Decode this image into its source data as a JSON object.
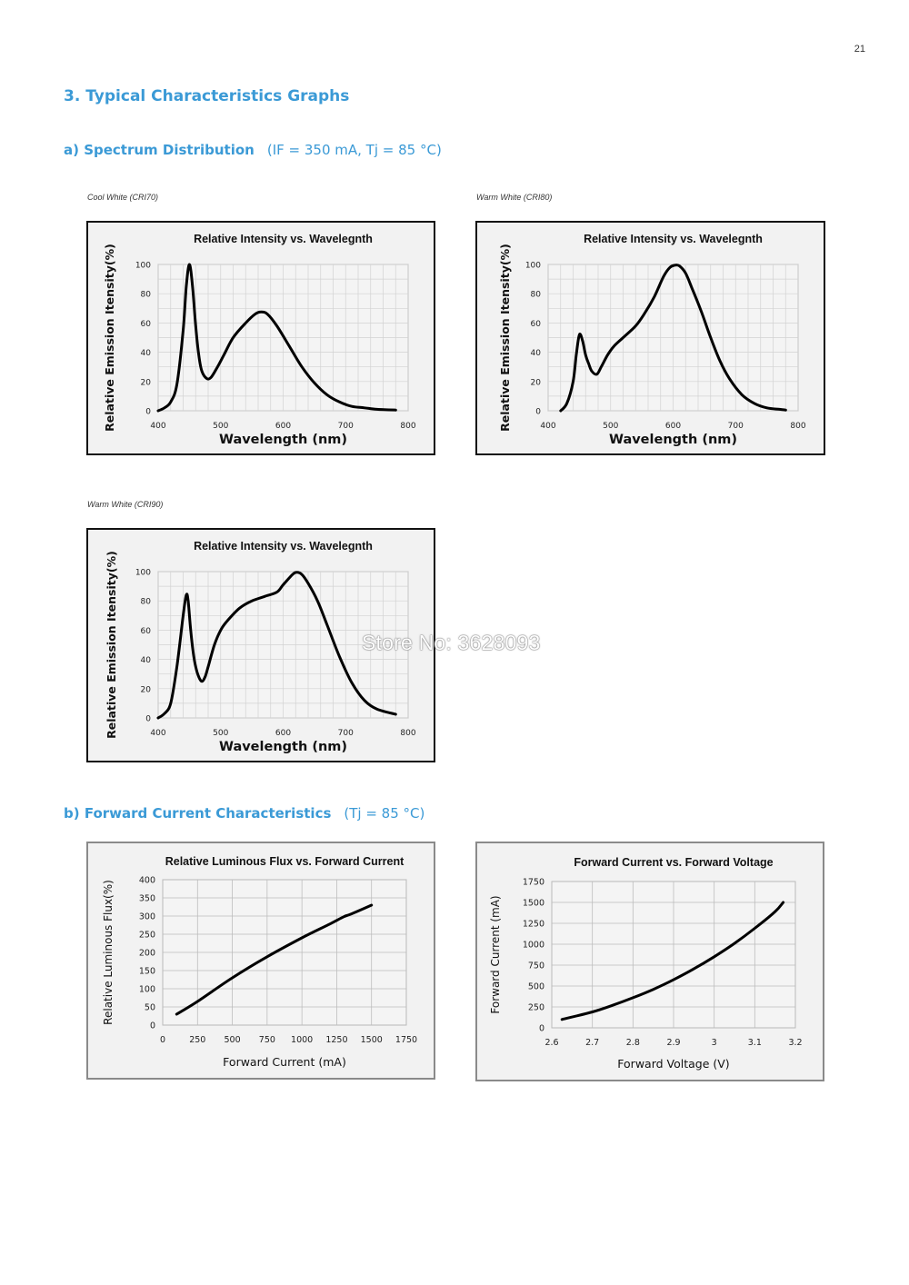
{
  "page_number": "21",
  "section": {
    "title": "3.  Typical Characteristics Graphs",
    "sub_a_title": "a)  Spectrum Distribution",
    "sub_a_conditions": "(IF = 350 mA, Tj = 85 °C)",
    "sub_b_title": "b)  Forward Current Characteristics",
    "sub_b_conditions": "(Tj = 85 °C)"
  },
  "captions": {
    "cool_cri70": "Cool White (CRI70)",
    "warm_cri80": "Warm White (CRI80)",
    "warm_cri90": "Warm White (CRI90)"
  },
  "watermark": "Store No: 3628093",
  "colors": {
    "heading": "#3b9ad6",
    "plot_bg": "#f2f2f2",
    "curve": "#000000",
    "grid": "#c8c8c8"
  },
  "chart_data": [
    {
      "id": "cool70",
      "type": "line",
      "title": "Relative  Intensity  vs.  Wavelegnth",
      "xlabel": "Wavelength (nm)",
      "ylabel": "Relative Emission Itensity(%)",
      "xlim": [
        400,
        800
      ],
      "ylim": [
        0,
        100
      ],
      "xticks": [
        400,
        500,
        600,
        700,
        800
      ],
      "yticks": [
        0,
        20,
        40,
        60,
        80,
        100
      ],
      "grid": true,
      "series": [
        {
          "x": [
            400,
            410,
            420,
            430,
            440,
            445,
            450,
            455,
            460,
            465,
            470,
            478,
            485,
            495,
            505,
            520,
            540,
            555,
            565,
            575,
            590,
            610,
            630,
            650,
            670,
            690,
            710,
            730,
            750,
            780
          ],
          "y": [
            0,
            2,
            6,
            18,
            55,
            85,
            100,
            85,
            58,
            38,
            27,
            22,
            23,
            30,
            38,
            50,
            60,
            66,
            67.5,
            66,
            58,
            44,
            30,
            19,
            11,
            6,
            3,
            2,
            1,
            0.5
          ]
        }
      ]
    },
    {
      "id": "warm80",
      "type": "line",
      "title": "Relative  Intensity  vs.  Wavelegnth",
      "xlabel": "Wavelength (nm)",
      "ylabel": "Relative Emission Itensity(%)",
      "xlim": [
        400,
        800
      ],
      "ylim": [
        0,
        100
      ],
      "xticks": [
        400,
        500,
        600,
        700,
        800
      ],
      "yticks": [
        0,
        20,
        40,
        60,
        80,
        100
      ],
      "grid": true,
      "series": [
        {
          "x": [
            420,
            430,
            440,
            445,
            450,
            455,
            460,
            465,
            470,
            478,
            485,
            495,
            505,
            520,
            540,
            555,
            570,
            585,
            595,
            603,
            610,
            620,
            630,
            645,
            660,
            675,
            690,
            710,
            730,
            750,
            770,
            780
          ],
          "y": [
            0,
            5,
            20,
            38,
            52,
            48,
            38,
            32,
            27,
            25,
            30,
            38,
            44,
            50,
            58,
            67,
            78,
            92,
            98,
            99.5,
            99,
            94,
            84,
            68,
            50,
            34,
            22,
            11,
            5,
            2,
            1,
            0.5
          ]
        }
      ]
    },
    {
      "id": "warm90",
      "type": "line",
      "title": "Relative  Intensity  vs.  Wavelegnth",
      "xlabel": "Wavelength (nm)",
      "ylabel": "Relative Emission Itensity(%)",
      "xlim": [
        400,
        800
      ],
      "ylim": [
        0,
        100
      ],
      "xticks": [
        400,
        500,
        600,
        700,
        800
      ],
      "yticks": [
        0,
        20,
        40,
        60,
        80,
        100
      ],
      "grid": true,
      "series": [
        {
          "x": [
            400,
            410,
            420,
            430,
            440,
            445,
            448,
            452,
            456,
            460,
            465,
            470,
            475,
            480,
            490,
            500,
            510,
            530,
            550,
            570,
            590,
            600,
            615,
            622,
            630,
            640,
            655,
            670,
            690,
            710,
            730,
            750,
            780
          ],
          "y": [
            0,
            3,
            10,
            35,
            70,
            84,
            80,
            60,
            45,
            35,
            28,
            25,
            28,
            35,
            50,
            60,
            66,
            75,
            80,
            83,
            86,
            91,
            98,
            99.5,
            98,
            92,
            80,
            64,
            42,
            24,
            12,
            6,
            2.5
          ]
        }
      ]
    },
    {
      "id": "flux",
      "type": "line",
      "title": "Relative Luminous Flux vs. Forward Current",
      "xlabel": "Forward Current (mA)",
      "ylabel": "Relative Luminous Flux(%)",
      "xlim": [
        0,
        1750
      ],
      "ylim": [
        0,
        400
      ],
      "xticks": [
        0,
        250,
        500,
        750,
        1000,
        1250,
        1500,
        1750
      ],
      "yticks": [
        0,
        50,
        100,
        150,
        200,
        250,
        300,
        350,
        400
      ],
      "grid": true,
      "series": [
        {
          "x": [
            100,
            250,
            500,
            750,
            1000,
            1200,
            1300,
            1350,
            1500
          ],
          "y": [
            30,
            65,
            130,
            188,
            240,
            278,
            298,
            305,
            330
          ]
        }
      ]
    },
    {
      "id": "vf",
      "type": "line",
      "title": "Forward Current vs. Forward Voltage",
      "xlabel": "Forward Voltage (V)",
      "ylabel": "Forward Current (mA)",
      "xlim": [
        2.6,
        3.2
      ],
      "ylim": [
        0,
        1750
      ],
      "xticks": [
        "2.6",
        "2.7",
        "2.8",
        "2.9",
        "3",
        "3.1",
        "3.2"
      ],
      "yticks": [
        0,
        250,
        500,
        750,
        1000,
        1250,
        1500,
        1750
      ],
      "grid": true,
      "series": [
        {
          "x": [
            2.625,
            2.7,
            2.75,
            2.8,
            2.85,
            2.9,
            2.95,
            3.0,
            3.05,
            3.1,
            3.15,
            3.17
          ],
          "y": [
            100,
            190,
            270,
            360,
            460,
            575,
            705,
            850,
            1010,
            1190,
            1390,
            1500
          ]
        }
      ]
    }
  ]
}
